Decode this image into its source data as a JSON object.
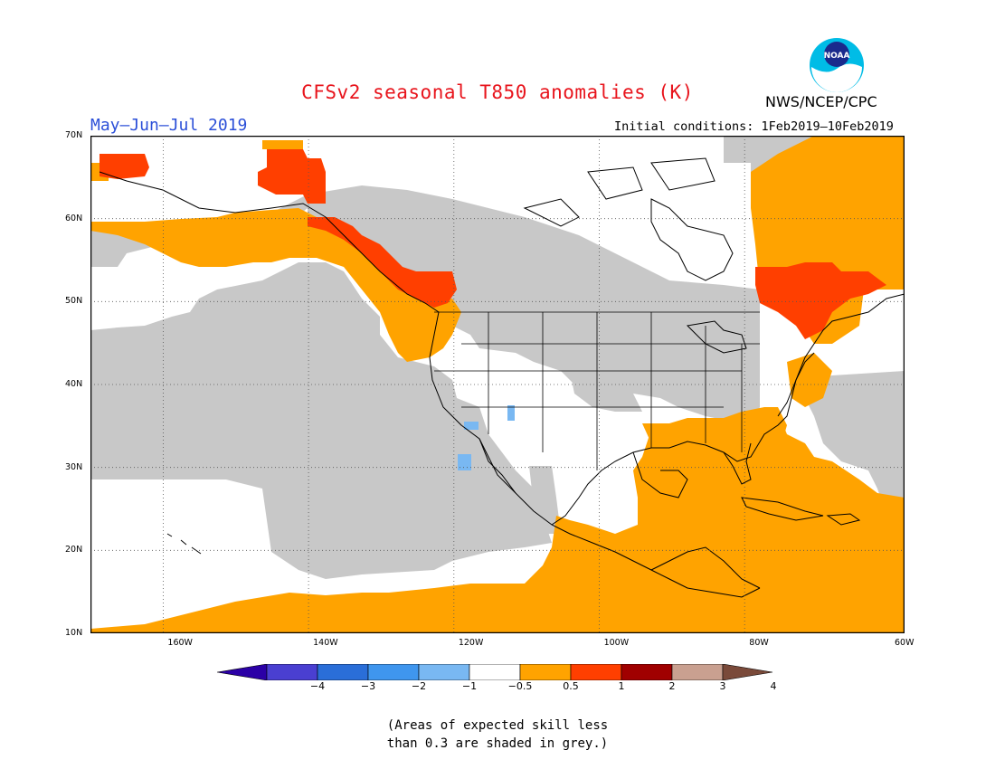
{
  "title": "CFSv2 seasonal T850 anomalies (K)",
  "organization": "NWS/NCEP/CPC",
  "logo_text": "NOAA",
  "season_label": "May–Jun–Jul 2019",
  "initial_conditions": "Initial conditions: 1Feb2019–10Feb2019",
  "map": {
    "projection": "cylindrical",
    "lon_range": [
      -172,
      -60
    ],
    "lat_range": [
      10,
      70
    ],
    "land_outline_color": "#000000",
    "grid": "dotted"
  },
  "lat_labels": [
    "70N",
    "60N",
    "50N",
    "40N",
    "30N",
    "20N",
    "10N"
  ],
  "lon_labels": [
    "160W",
    "140W",
    "120W",
    "100W",
    "80W",
    "60W"
  ],
  "colorbar": {
    "ticks": [
      "−4",
      "−3",
      "−2",
      "−1",
      "−0.5",
      "0.5",
      "1",
      "2",
      "3",
      "4"
    ],
    "colors": [
      "#2b00a6",
      "#4a3fd1",
      "#2a6ed8",
      "#3f96ee",
      "#79b8f2",
      "#ffffff",
      "#ffa300",
      "#ff3f00",
      "#a00000",
      "#c9a090",
      "#7a4a3a"
    ]
  },
  "colors": {
    "grey": "#c8c8c8",
    "orange": "#ffa300",
    "red": "#ff3f00",
    "lightblue": "#79b8f2",
    "white": "#ffffff"
  },
  "footnote": {
    "line1": "(Areas of expected skill less",
    "line2": "than 0.3 are shaded in grey.)"
  }
}
